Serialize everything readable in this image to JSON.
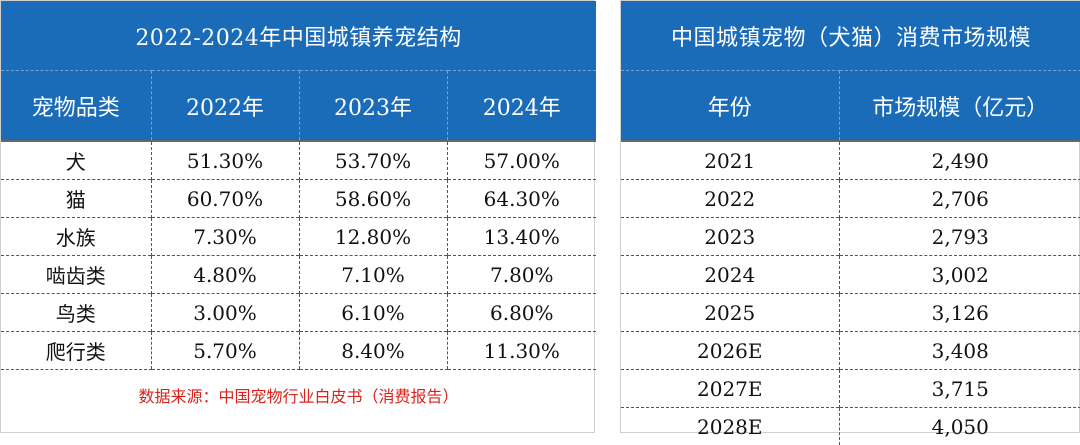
{
  "left": {
    "title": "2022-2024年中国城镇养宠结构",
    "headers": [
      "宠物品类",
      "2022年",
      "2023年",
      "2024年"
    ],
    "rows": [
      [
        "犬",
        "51.30%",
        "53.70%",
        "57.00%"
      ],
      [
        "猫",
        "60.70%",
        "58.60%",
        "64.30%"
      ],
      [
        "水族",
        "7.30%",
        "12.80%",
        "13.40%"
      ],
      [
        "啮齿类",
        "4.80%",
        "7.10%",
        "7.80%"
      ],
      [
        "鸟类",
        "3.00%",
        "6.10%",
        "6.80%"
      ],
      [
        "爬行类",
        "5.70%",
        "8.40%",
        "11.30%"
      ]
    ],
    "source": "数据来源：中国宠物行业白皮书（消费报告）"
  },
  "right": {
    "title": "中国城镇宠物（犬猫）消费市场规模",
    "headers": [
      "年份",
      "市场规模（亿元）"
    ],
    "rows": [
      [
        "2021",
        "2,490"
      ],
      [
        "2022",
        "2,706"
      ],
      [
        "2023",
        "2,793"
      ],
      [
        "2024",
        "3,002"
      ],
      [
        "2025",
        "3,126"
      ],
      [
        "2026E",
        "3,408"
      ],
      [
        "2027E",
        "3,715"
      ],
      [
        "2028E",
        "4,050"
      ]
    ]
  },
  "colors": {
    "header_bg": "#1a6bb8",
    "header_text": "#ffffff",
    "source_text": "#d9231c"
  }
}
